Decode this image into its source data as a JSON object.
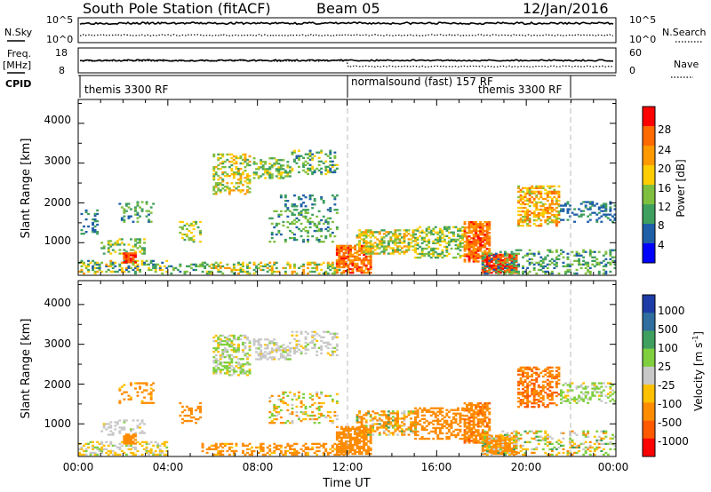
{
  "header": {
    "station": "South Pole Station (fitACF)",
    "beam": "Beam 05",
    "date": "12/Jan/2016"
  },
  "top_panel": {
    "left_label": "N.Sky",
    "left_ticks": [
      "10^5",
      "10^0"
    ],
    "right_ticks": [
      "10^5",
      "10^0"
    ],
    "right_label": "N.Search"
  },
  "freq_panel": {
    "label_line1": "Freq.",
    "label_line2": "[MHz]",
    "left_ticks": [
      "18",
      "8"
    ],
    "right_ticks": [
      "60",
      "0"
    ],
    "right_label": "Nave"
  },
  "cpid": {
    "label": "CPID",
    "segments": [
      "themis 3300 RF",
      "normalsound (fast) 157 RF",
      "themis 3300 RF"
    ]
  },
  "chart_data": [
    {
      "type": "heatmap",
      "quantity": "power",
      "ylabel": "Slant Range [km]",
      "yticks": [
        "4000",
        "3000",
        "2000",
        "1000"
      ],
      "ylim": [
        180,
        4600
      ],
      "xlim": [
        0,
        24
      ],
      "colorbar_label": "Power [dB]",
      "colorbar_ticks": [
        "28",
        "24",
        "20",
        "16",
        "12",
        "8",
        "4"
      ],
      "colorbar_colors": [
        "#ff0000",
        "#ff6a00",
        "#ff9900",
        "#ffcc00",
        "#7fbf3f",
        "#3f9f5f",
        "#1f5fa8",
        "#0000ff"
      ],
      "range_gate_km": 45,
      "time_step_h": 0.1,
      "clusters": [
        {
          "t": [
            0.1,
            0.8
          ],
          "r": [
            1200,
            1800
          ],
          "d": 0.25,
          "v": [
            4,
            10
          ]
        },
        {
          "t": [
            0.0,
            4.0
          ],
          "r": [
            200,
            550
          ],
          "d": 0.45,
          "v": [
            6,
            22
          ]
        },
        {
          "t": [
            1.0,
            3.0
          ],
          "r": [
            700,
            1100
          ],
          "d": 0.35,
          "v": [
            8,
            20
          ]
        },
        {
          "t": [
            2.0,
            2.6
          ],
          "r": [
            480,
            720
          ],
          "d": 0.85,
          "v": [
            26,
            30
          ]
        },
        {
          "t": [
            1.8,
            3.4
          ],
          "r": [
            1500,
            2000
          ],
          "d": 0.25,
          "v": [
            6,
            16
          ]
        },
        {
          "t": [
            4.0,
            5.5
          ],
          "r": [
            200,
            450
          ],
          "d": 0.35,
          "v": [
            6,
            16
          ]
        },
        {
          "t": [
            4.5,
            5.4
          ],
          "r": [
            1000,
            1500
          ],
          "d": 0.3,
          "v": [
            10,
            20
          ]
        },
        {
          "t": [
            6.0,
            7.6
          ],
          "r": [
            2200,
            3200
          ],
          "d": 0.45,
          "v": [
            10,
            24
          ]
        },
        {
          "t": [
            5.5,
            12.0
          ],
          "r": [
            200,
            500
          ],
          "d": 0.4,
          "v": [
            8,
            24
          ]
        },
        {
          "t": [
            7.8,
            9.4
          ],
          "r": [
            2600,
            3100
          ],
          "d": 0.45,
          "v": [
            8,
            18
          ]
        },
        {
          "t": [
            9.5,
            11.5
          ],
          "r": [
            2700,
            3300
          ],
          "d": 0.3,
          "v": [
            6,
            18
          ]
        },
        {
          "t": [
            8.5,
            11.5
          ],
          "r": [
            1000,
            1800
          ],
          "d": 0.25,
          "v": [
            6,
            16
          ]
        },
        {
          "t": [
            9.0,
            11.5
          ],
          "r": [
            1800,
            2200
          ],
          "d": 0.2,
          "v": [
            4,
            12
          ]
        },
        {
          "t": [
            11.5,
            13.0
          ],
          "r": [
            220,
            900
          ],
          "d": 0.75,
          "v": [
            20,
            30
          ]
        },
        {
          "t": [
            12.4,
            15.0
          ],
          "r": [
            700,
            1300
          ],
          "d": 0.55,
          "v": [
            10,
            24
          ]
        },
        {
          "t": [
            15.0,
            17.2
          ],
          "r": [
            600,
            1400
          ],
          "d": 0.45,
          "v": [
            8,
            20
          ]
        },
        {
          "t": [
            17.2,
            18.4
          ],
          "r": [
            500,
            1500
          ],
          "d": 0.75,
          "v": [
            20,
            30
          ]
        },
        {
          "t": [
            18.0,
            19.6
          ],
          "r": [
            220,
            700
          ],
          "d": 0.9,
          "v": [
            26,
            30
          ]
        },
        {
          "t": [
            19.6,
            21.5
          ],
          "r": [
            1400,
            2400
          ],
          "d": 0.55,
          "v": [
            14,
            26
          ]
        },
        {
          "t": [
            21.5,
            24.0
          ],
          "r": [
            1500,
            2000
          ],
          "d": 0.35,
          "v": [
            4,
            10
          ]
        },
        {
          "t": [
            18.0,
            24.0
          ],
          "r": [
            200,
            800
          ],
          "d": 0.3,
          "v": [
            6,
            16
          ]
        }
      ]
    },
    {
      "type": "heatmap",
      "quantity": "velocity",
      "ylabel": "Slant Range [km]",
      "yticks": [
        "4000",
        "3000",
        "2000",
        "1000"
      ],
      "ylim": [
        180,
        4600
      ],
      "xlim": [
        0,
        24
      ],
      "xlabel": "Time UT",
      "xticks": [
        "00:00",
        "04:00",
        "08:00",
        "12:00",
        "16:00",
        "20:00",
        "00:00"
      ],
      "colorbar_label": "Velocity [m s",
      "colorbar_sup": "-1",
      "colorbar_ticks": [
        "1000",
        "500",
        "100",
        "25",
        "-25",
        "-100",
        "-500",
        "-1000"
      ],
      "colorbar_colors": [
        "#1e3ca8",
        "#2f6e9e",
        "#3f9f5f",
        "#7fcf3f",
        "#c8c8c8",
        "#ffc000",
        "#ff8c00",
        "#ff5a00",
        "#ff0000"
      ],
      "clusters": [
        {
          "t": [
            0.0,
            4.0
          ],
          "r": [
            200,
            550
          ],
          "d": 0.45,
          "v": [
            -100,
            50
          ]
        },
        {
          "t": [
            1.0,
            3.0
          ],
          "r": [
            700,
            1100
          ],
          "d": 0.35,
          "v": [
            -30,
            30
          ]
        },
        {
          "t": [
            2.0,
            2.6
          ],
          "r": [
            480,
            720
          ],
          "d": 0.8,
          "v": [
            -200,
            -100
          ]
        },
        {
          "t": [
            1.8,
            3.4
          ],
          "r": [
            1500,
            2000
          ],
          "d": 0.25,
          "v": [
            -300,
            -50
          ]
        },
        {
          "t": [
            4.5,
            5.4
          ],
          "r": [
            1000,
            1500
          ],
          "d": 0.3,
          "v": [
            -400,
            -100
          ]
        },
        {
          "t": [
            6.0,
            7.6
          ],
          "r": [
            2200,
            3200
          ],
          "d": 0.45,
          "v": [
            -50,
            80
          ]
        },
        {
          "t": [
            5.5,
            12.0
          ],
          "r": [
            200,
            500
          ],
          "d": 0.4,
          "v": [
            -300,
            -50
          ]
        },
        {
          "t": [
            7.8,
            9.4
          ],
          "r": [
            2600,
            3100
          ],
          "d": 0.45,
          "v": [
            -30,
            30
          ]
        },
        {
          "t": [
            9.5,
            11.5
          ],
          "r": [
            2700,
            3300
          ],
          "d": 0.3,
          "v": [
            -30,
            30
          ]
        },
        {
          "t": [
            8.5,
            11.5
          ],
          "r": [
            1000,
            1800
          ],
          "d": 0.25,
          "v": [
            -200,
            100
          ]
        },
        {
          "t": [
            11.5,
            13.0
          ],
          "r": [
            220,
            900
          ],
          "d": 0.75,
          "v": [
            -500,
            -150
          ]
        },
        {
          "t": [
            12.4,
            15.0
          ],
          "r": [
            700,
            1300
          ],
          "d": 0.55,
          "v": [
            -400,
            150
          ]
        },
        {
          "t": [
            15.0,
            17.2
          ],
          "r": [
            600,
            1400
          ],
          "d": 0.45,
          "v": [
            -500,
            -100
          ]
        },
        {
          "t": [
            17.2,
            18.4
          ],
          "r": [
            500,
            1500
          ],
          "d": 0.7,
          "v": [
            -600,
            -150
          ]
        },
        {
          "t": [
            18.0,
            19.6
          ],
          "r": [
            220,
            700
          ],
          "d": 0.85,
          "v": [
            -300,
            -100
          ]
        },
        {
          "t": [
            19.6,
            21.5
          ],
          "r": [
            1400,
            2400
          ],
          "d": 0.55,
          "v": [
            -700,
            -200
          ]
        },
        {
          "t": [
            21.5,
            24.0
          ],
          "r": [
            1500,
            2000
          ],
          "d": 0.3,
          "v": [
            -50,
            100
          ]
        },
        {
          "t": [
            18.0,
            24.0
          ],
          "r": [
            200,
            800
          ],
          "d": 0.3,
          "v": [
            -150,
            120
          ]
        }
      ]
    }
  ]
}
